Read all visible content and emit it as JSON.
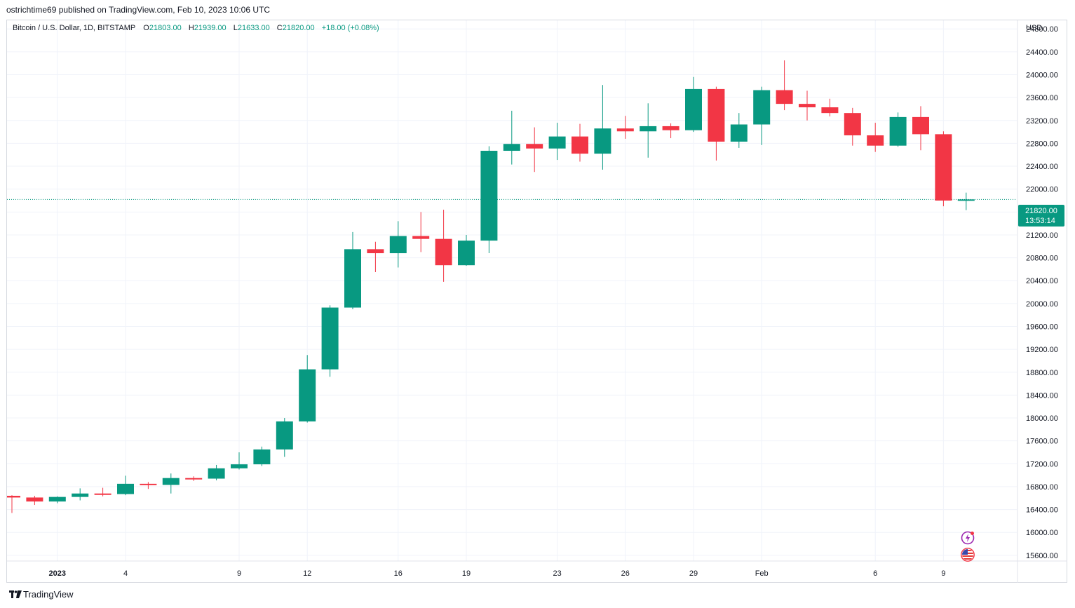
{
  "header": {
    "published_line": "ostrichtime69 published on TradingView.com, Feb 10, 2023 10:06 UTC"
  },
  "legend": {
    "symbol": "Bitcoin / U.S. Dollar, 1D, BITSTAMP",
    "o_label": "O",
    "o_value": "21803.00",
    "h_label": "H",
    "h_value": "21939.00",
    "l_label": "L",
    "l_value": "21633.00",
    "c_label": "C",
    "c_value": "21820.00",
    "change": "+18.00 (+0.08%)"
  },
  "axis": {
    "currency": "USD",
    "last_price": "21820.00",
    "countdown": "13:53:14"
  },
  "footer": {
    "brand": "TradingView"
  },
  "colors": {
    "up": "#089981",
    "down": "#f23645",
    "grid": "#f0f3fa",
    "text": "#131722"
  },
  "icons": [
    "lightning-badge-icon",
    "us-flag-badge-icon",
    "tradingview-logo-icon"
  ],
  "chart_data": {
    "type": "candlestick",
    "ylim": [
      15500,
      24950
    ],
    "y_ticks": [
      15600,
      16000,
      16400,
      16800,
      17200,
      17600,
      18000,
      18400,
      18800,
      19200,
      19600,
      20000,
      20400,
      20800,
      21200,
      21600,
      22000,
      22400,
      22800,
      23200,
      23600,
      24000,
      24400,
      24800
    ],
    "x_ticks": [
      {
        "date": "2023-01-01",
        "label": "2023",
        "bold": true
      },
      {
        "date": "2023-01-04",
        "label": "4"
      },
      {
        "date": "2023-01-09",
        "label": "9"
      },
      {
        "date": "2023-01-12",
        "label": "12"
      },
      {
        "date": "2023-01-16",
        "label": "16"
      },
      {
        "date": "2023-01-19",
        "label": "19"
      },
      {
        "date": "2023-01-23",
        "label": "23"
      },
      {
        "date": "2023-01-26",
        "label": "26"
      },
      {
        "date": "2023-01-29",
        "label": "29"
      },
      {
        "date": "2023-02-01",
        "label": "Feb"
      },
      {
        "date": "2023-02-06",
        "label": "6"
      },
      {
        "date": "2023-02-09",
        "label": "9"
      }
    ],
    "last_close": 21820,
    "candles": [
      {
        "date": "2022-12-30",
        "o": 16640,
        "h": 16650,
        "l": 16340,
        "c": 16610
      },
      {
        "date": "2022-12-31",
        "o": 16610,
        "h": 16640,
        "l": 16480,
        "c": 16540
      },
      {
        "date": "2023-01-01",
        "o": 16540,
        "h": 16630,
        "l": 16510,
        "c": 16620
      },
      {
        "date": "2023-01-02",
        "o": 16620,
        "h": 16770,
        "l": 16560,
        "c": 16680
      },
      {
        "date": "2023-01-03",
        "o": 16680,
        "h": 16780,
        "l": 16630,
        "c": 16670
      },
      {
        "date": "2023-01-04",
        "o": 16670,
        "h": 16990,
        "l": 16650,
        "c": 16850
      },
      {
        "date": "2023-01-05",
        "o": 16850,
        "h": 16880,
        "l": 16760,
        "c": 16830
      },
      {
        "date": "2023-01-06",
        "o": 16830,
        "h": 17030,
        "l": 16680,
        "c": 16950
      },
      {
        "date": "2023-01-07",
        "o": 16950,
        "h": 16980,
        "l": 16900,
        "c": 16940
      },
      {
        "date": "2023-01-08",
        "o": 16940,
        "h": 17180,
        "l": 16910,
        "c": 17120
      },
      {
        "date": "2023-01-09",
        "o": 17120,
        "h": 17400,
        "l": 17100,
        "c": 17190
      },
      {
        "date": "2023-01-10",
        "o": 17190,
        "h": 17500,
        "l": 17160,
        "c": 17450
      },
      {
        "date": "2023-01-11",
        "o": 17450,
        "h": 18000,
        "l": 17320,
        "c": 17940
      },
      {
        "date": "2023-01-12",
        "o": 17940,
        "h": 19100,
        "l": 17920,
        "c": 18850
      },
      {
        "date": "2023-01-13",
        "o": 18850,
        "h": 19970,
        "l": 18720,
        "c": 19930
      },
      {
        "date": "2023-01-14",
        "o": 19930,
        "h": 21250,
        "l": 19900,
        "c": 20950
      },
      {
        "date": "2023-01-15",
        "o": 20950,
        "h": 21080,
        "l": 20550,
        "c": 20880
      },
      {
        "date": "2023-01-16",
        "o": 20880,
        "h": 21440,
        "l": 20630,
        "c": 21180
      },
      {
        "date": "2023-01-17",
        "o": 21180,
        "h": 21600,
        "l": 20900,
        "c": 21130
      },
      {
        "date": "2023-01-18",
        "o": 21130,
        "h": 21640,
        "l": 20380,
        "c": 20670
      },
      {
        "date": "2023-01-19",
        "o": 20670,
        "h": 21200,
        "l": 20660,
        "c": 21100
      },
      {
        "date": "2023-01-20",
        "o": 21100,
        "h": 22750,
        "l": 20880,
        "c": 22670
      },
      {
        "date": "2023-01-21",
        "o": 22670,
        "h": 23370,
        "l": 22430,
        "c": 22790
      },
      {
        "date": "2023-01-22",
        "o": 22790,
        "h": 23080,
        "l": 22300,
        "c": 22710
      },
      {
        "date": "2023-01-23",
        "o": 22710,
        "h": 23160,
        "l": 22510,
        "c": 22920
      },
      {
        "date": "2023-01-24",
        "o": 22920,
        "h": 23140,
        "l": 22480,
        "c": 22620
      },
      {
        "date": "2023-01-25",
        "o": 22620,
        "h": 23820,
        "l": 22340,
        "c": 23060
      },
      {
        "date": "2023-01-26",
        "o": 23060,
        "h": 23280,
        "l": 22880,
        "c": 23010
      },
      {
        "date": "2023-01-27",
        "o": 23010,
        "h": 23500,
        "l": 22550,
        "c": 23100
      },
      {
        "date": "2023-01-28",
        "o": 23100,
        "h": 23150,
        "l": 22890,
        "c": 23030
      },
      {
        "date": "2023-01-29",
        "o": 23030,
        "h": 23960,
        "l": 23000,
        "c": 23750
      },
      {
        "date": "2023-01-30",
        "o": 23750,
        "h": 23790,
        "l": 22500,
        "c": 22830
      },
      {
        "date": "2023-01-31",
        "o": 22830,
        "h": 23330,
        "l": 22720,
        "c": 23130
      },
      {
        "date": "2023-02-01",
        "o": 23130,
        "h": 23790,
        "l": 22770,
        "c": 23730
      },
      {
        "date": "2023-02-02",
        "o": 23730,
        "h": 24250,
        "l": 23380,
        "c": 23490
      },
      {
        "date": "2023-02-03",
        "o": 23490,
        "h": 23720,
        "l": 23200,
        "c": 23430
      },
      {
        "date": "2023-02-04",
        "o": 23430,
        "h": 23580,
        "l": 23270,
        "c": 23330
      },
      {
        "date": "2023-02-05",
        "o": 23330,
        "h": 23420,
        "l": 22760,
        "c": 22940
      },
      {
        "date": "2023-02-06",
        "o": 22940,
        "h": 23160,
        "l": 22650,
        "c": 22760
      },
      {
        "date": "2023-02-07",
        "o": 22760,
        "h": 23340,
        "l": 22740,
        "c": 23260
      },
      {
        "date": "2023-02-08",
        "o": 23260,
        "h": 23450,
        "l": 22680,
        "c": 22960
      },
      {
        "date": "2023-02-09",
        "o": 22960,
        "h": 23010,
        "l": 21700,
        "c": 21800
      },
      {
        "date": "2023-02-10",
        "o": 21803,
        "h": 21939,
        "l": 21633,
        "c": 21820
      }
    ]
  }
}
